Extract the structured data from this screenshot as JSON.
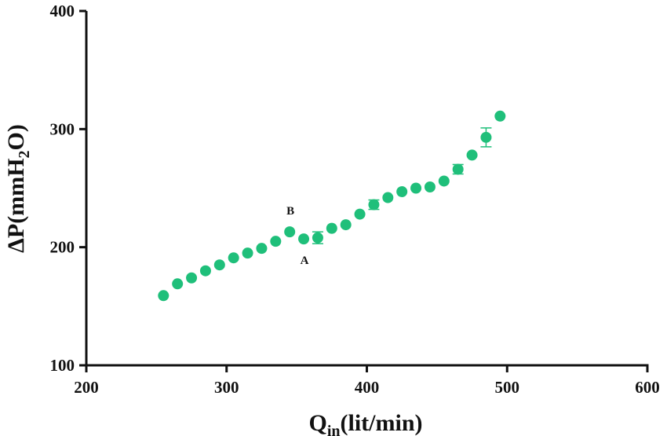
{
  "chart_data": {
    "type": "scatter",
    "title": "",
    "xlabel": {
      "main": "Q",
      "sub": "in",
      "rest": "(lit/min)"
    },
    "ylabel": {
      "pre": "ΔP(mmH",
      "sub": "2",
      "post": "O)"
    },
    "xlim": [
      200,
      600
    ],
    "ylim": [
      100,
      400
    ],
    "xticks": [
      "200",
      "300",
      "400",
      "500",
      "600"
    ],
    "yticks": [
      "100",
      "200",
      "300",
      "400"
    ],
    "grid": false,
    "marker_color": "#1fbf7a",
    "error_color": "#1fbf7a",
    "series": [
      {
        "points": [
          {
            "x": 255,
            "y": 159,
            "err": 0
          },
          {
            "x": 265,
            "y": 169,
            "err": 0
          },
          {
            "x": 275,
            "y": 174,
            "err": 0
          },
          {
            "x": 285,
            "y": 180,
            "err": 0
          },
          {
            "x": 295,
            "y": 185,
            "err": 0
          },
          {
            "x": 305,
            "y": 191,
            "err": 0
          },
          {
            "x": 315,
            "y": 195,
            "err": 0
          },
          {
            "x": 325,
            "y": 199,
            "err": 0
          },
          {
            "x": 335,
            "y": 205,
            "err": 0
          },
          {
            "x": 345,
            "y": 213,
            "err": 0
          },
          {
            "x": 355,
            "y": 207,
            "err": 0
          },
          {
            "x": 365,
            "y": 208,
            "err": 5
          },
          {
            "x": 375,
            "y": 216,
            "err": 0
          },
          {
            "x": 385,
            "y": 219,
            "err": 0
          },
          {
            "x": 395,
            "y": 228,
            "err": 0
          },
          {
            "x": 405,
            "y": 236,
            "err": 4
          },
          {
            "x": 415,
            "y": 242,
            "err": 0
          },
          {
            "x": 425,
            "y": 247,
            "err": 0
          },
          {
            "x": 435,
            "y": 250,
            "err": 0
          },
          {
            "x": 445,
            "y": 251,
            "err": 0
          },
          {
            "x": 455,
            "y": 256,
            "err": 0
          },
          {
            "x": 465,
            "y": 266,
            "err": 4
          },
          {
            "x": 475,
            "y": 278,
            "err": 0
          },
          {
            "x": 485,
            "y": 293,
            "err": 8
          },
          {
            "x": 495,
            "y": 311,
            "err": 0
          }
        ]
      }
    ],
    "annotations": [
      {
        "text": "B",
        "x": 345,
        "y": 213,
        "position": "above"
      },
      {
        "text": "A",
        "x": 355,
        "y": 207,
        "position": "below"
      }
    ]
  }
}
